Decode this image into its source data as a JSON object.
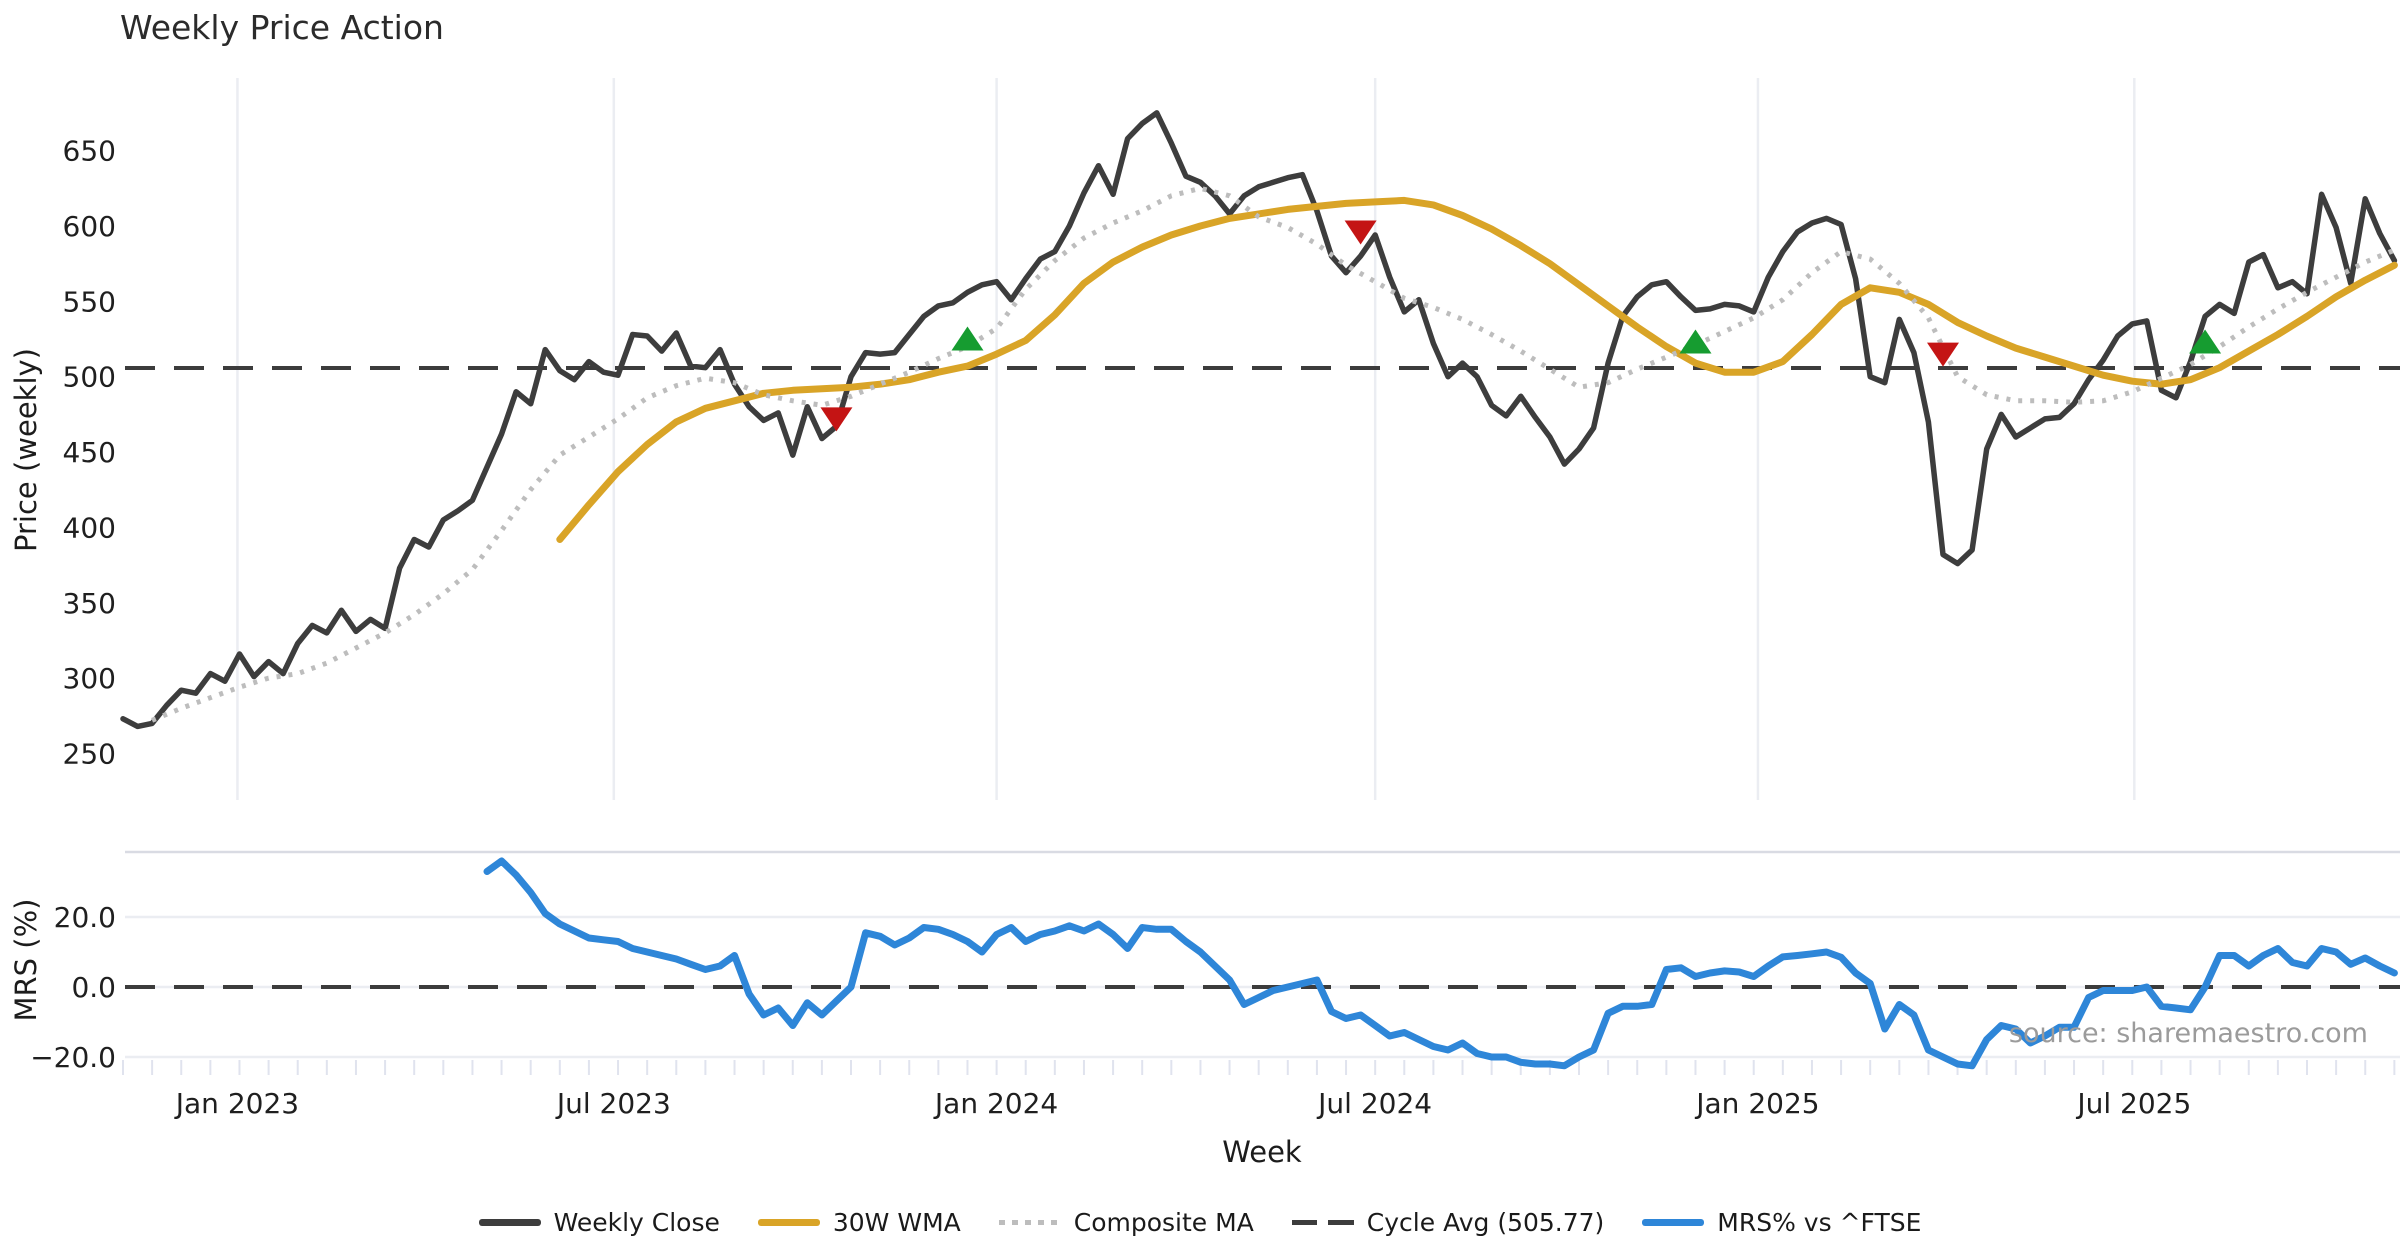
{
  "title": "Weekly Price Action",
  "source": "source: sharemaestro.com",
  "axes": {
    "price_label": "Price (weekly)",
    "mrs_label": "MRS (%)",
    "x_label": "Week",
    "price_ticks": [
      250,
      300,
      350,
      400,
      450,
      500,
      550,
      600,
      650
    ],
    "mrs_ticks": [
      {
        "label": "20.0",
        "value": 20
      },
      {
        "label": "0.0",
        "value": 0
      },
      {
        "label": "−20.0",
        "value": -20
      }
    ],
    "x_ticks": [
      {
        "label": "Jan 2023",
        "week": 7.86
      },
      {
        "label": "Jul 2023",
        "week": 33.71
      },
      {
        "label": "Jan 2024",
        "week": 60.0
      },
      {
        "label": "Jul 2024",
        "week": 86.0
      },
      {
        "label": "Jan 2025",
        "week": 112.29
      },
      {
        "label": "Jul 2025",
        "week": 138.14
      }
    ]
  },
  "legend": {
    "items": [
      {
        "label": "Weekly Close",
        "color": "#3d3d3d",
        "style": "solid"
      },
      {
        "label": "30W WMA",
        "color": "#d9a427",
        "style": "solid"
      },
      {
        "label": "Composite MA",
        "color": "#bdbdbd",
        "style": "dotted"
      },
      {
        "label": "Cycle Avg (505.77)",
        "color": "#3c3c3c",
        "style": "dashed"
      },
      {
        "label": "MRS% vs ^FTSE",
        "color": "#2e86d8",
        "style": "solid"
      }
    ]
  },
  "chart_data": {
    "type": "line",
    "x_unit": "weekly closes; week 0 = first plotted week (early Nov 2022), ~52 weeks/year",
    "cycle_avg": 505.77,
    "price_axis_range": [
      250,
      650
    ],
    "mrs_axis_range": [
      -20,
      20
    ],
    "grid": "vertical-on-price-panel",
    "legend_position": "bottom-center",
    "series": [
      {
        "name": "Weekly Close",
        "panel": "price",
        "color": "#3d3d3d",
        "style": "solid",
        "width": 5.5,
        "start_week": 0,
        "step": 1,
        "values": [
          273,
          268,
          270,
          282,
          292,
          290,
          303,
          298,
          316,
          301,
          311,
          303,
          323,
          335,
          330,
          345,
          331,
          339,
          333,
          373,
          392,
          387,
          405,
          411,
          418,
          440,
          462,
          490,
          482,
          518,
          504,
          498,
          510,
          503,
          501,
          528,
          527,
          517,
          529,
          507,
          506,
          518,
          495,
          480,
          471,
          476,
          448,
          480,
          459,
          467,
          500,
          516,
          515,
          516,
          528,
          540,
          547,
          549,
          556,
          561,
          563,
          551,
          565,
          578,
          583,
          600,
          622,
          640,
          621,
          658,
          668,
          675,
          655,
          633,
          629,
          620,
          608,
          620,
          626,
          629,
          632,
          634,
          610,
          580,
          569,
          580,
          594,
          566,
          543,
          551,
          522,
          500,
          509,
          500,
          481,
          474,
          487,
          473,
          460,
          442,
          452,
          466,
          509,
          540,
          553,
          561,
          563,
          553,
          544,
          545,
          548,
          547,
          543,
          566,
          583,
          596,
          602,
          605,
          601,
          565,
          500,
          496,
          538,
          516,
          470,
          382,
          376,
          385,
          452,
          475,
          460,
          466,
          472,
          473,
          482,
          498,
          511,
          527,
          535,
          537,
          491,
          486,
          510,
          540,
          548,
          542,
          576,
          581,
          559,
          563,
          555,
          621,
          599,
          562,
          618,
          595,
          577
        ]
      },
      {
        "name": "30W WMA",
        "panel": "price",
        "color": "#d9a427",
        "style": "solid",
        "width": 7,
        "start_week": 30,
        "step": 2,
        "values": [
          392,
          415,
          437,
          455,
          470,
          479,
          484,
          489,
          491,
          492,
          493,
          495,
          498,
          503,
          507,
          515,
          524,
          541,
          562,
          576,
          586,
          594,
          600,
          605,
          608,
          611,
          613,
          615,
          616,
          617,
          614,
          607,
          598,
          587,
          575,
          561,
          547,
          533,
          520,
          509,
          503,
          503,
          510,
          528,
          548,
          559,
          556,
          548,
          536,
          527,
          519,
          513,
          507,
          501,
          497,
          495,
          498,
          506,
          517,
          528,
          540,
          553,
          564,
          574
        ]
      },
      {
        "name": "Composite MA",
        "panel": "price",
        "color": "#bdbdbd",
        "style": "dotted",
        "width": 5,
        "start_week": 2,
        "step": 2,
        "values": [
          272,
          280,
          287,
          294,
          300,
          303,
          310,
          320,
          330,
          342,
          356,
          372,
          398,
          425,
          448,
          460,
          472,
          486,
          494,
          499,
          496,
          488,
          484,
          481,
          487,
          495,
          503,
          512,
          520,
          532,
          558,
          577,
          592,
          602,
          610,
          620,
          625,
          620,
          606,
          599,
          588,
          574,
          563,
          552,
          546,
          538,
          528,
          517,
          505,
          493,
          496,
          505,
          513,
          521,
          530,
          539,
          551,
          569,
          583,
          578,
          562,
          539,
          500,
          488,
          484,
          484,
          483,
          484,
          490,
          499,
          508,
          520,
          533,
          545,
          556,
          566,
          576,
          584
        ]
      },
      {
        "name": "Cycle Avg",
        "panel": "price",
        "color": "#3c3c3c",
        "style": "dashed",
        "width": 4,
        "constant": 505.77
      },
      {
        "name": "MRS% vs ^FTSE",
        "panel": "mrs",
        "color": "#2e86d8",
        "style": "solid",
        "width": 7,
        "start_week": 25,
        "step": 1,
        "values": [
          33,
          36,
          32,
          27,
          21,
          18,
          16,
          14,
          13.5,
          13,
          11,
          10,
          9,
          8,
          6.5,
          5,
          6,
          9,
          -2,
          -8,
          -6,
          -11,
          -4.5,
          -8,
          -4,
          0,
          15.5,
          14.5,
          12,
          14,
          17,
          16.5,
          15,
          13,
          10,
          15,
          17,
          13,
          15,
          16,
          17.5,
          16,
          18,
          15,
          11,
          17,
          16.5,
          16.5,
          13,
          10,
          6,
          2,
          -5,
          -3,
          -1,
          0,
          1,
          2,
          -7,
          -9,
          -8,
          -11,
          -14,
          -13,
          -15,
          -17,
          -18,
          -16,
          -19,
          -20,
          -20,
          -21.5,
          -22,
          -22,
          -22.5,
          -20,
          -18,
          -7.5,
          -5.5,
          -5.5,
          -5,
          5,
          5.5,
          3,
          4,
          4.6,
          4.3,
          3,
          6,
          8.6,
          9,
          9.5,
          10,
          8.5,
          4,
          1,
          -12,
          -5,
          -8,
          -18,
          -20,
          -22,
          -22.5,
          -15,
          -11,
          -12,
          -16,
          -14,
          -11.5,
          -11.5,
          -3,
          -1,
          -1,
          -1,
          0,
          -5.5,
          -6,
          -6.5,
          0,
          9,
          9,
          6,
          9,
          11,
          7,
          6,
          11,
          10,
          6.5,
          8.3,
          6,
          4
        ]
      }
    ],
    "markers": {
      "sell_signals": [
        {
          "week": 49,
          "price": 473
        },
        {
          "week": 85,
          "price": 597
        },
        {
          "week": 125,
          "price": 516
        }
      ],
      "buy_signals": [
        {
          "week": 58,
          "price": 524
        },
        {
          "week": 108,
          "price": 522
        },
        {
          "week": 143,
          "price": 522
        }
      ],
      "sell_color": "#c41414",
      "buy_color": "#169c30"
    }
  },
  "colors": {
    "background": "#ffffff",
    "gridline": "#ebedf2",
    "mrs_border": "#d9dbe3",
    "tick_text": "#1f1f1f",
    "dashed_line": "#3c3c3c"
  }
}
